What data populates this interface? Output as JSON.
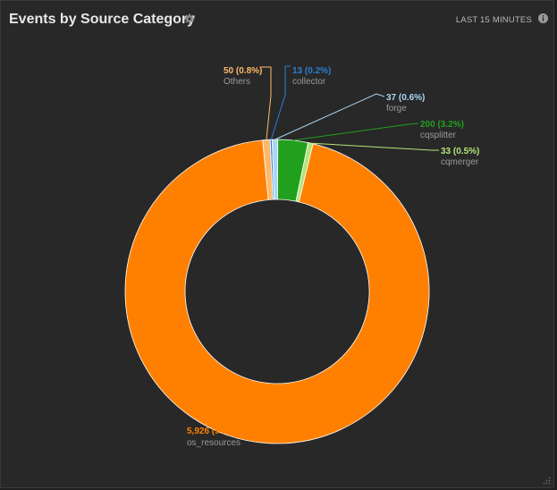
{
  "panel": {
    "title": "Events by Source Category",
    "time_range": "LAST 15 MINUTES",
    "settings_icon": "gear-icon",
    "info_icon": "info-icon"
  },
  "chart_data": {
    "type": "pie",
    "donut": true,
    "slices": [
      {
        "name": "os_resources",
        "value": 5926,
        "label": "5,926 (94.7%)",
        "color": "#ff8000",
        "label_color": "#ff8000"
      },
      {
        "name": "Others",
        "value": 50,
        "label": "50 (0.8%)",
        "color": "#ffb86b",
        "label_color": "#ffb86b"
      },
      {
        "name": "collector",
        "value": 13,
        "label": "13 (0.2%)",
        "color": "#2b7fd6",
        "label_color": "#2b7fd6"
      },
      {
        "name": "forge",
        "value": 37,
        "label": "37 (0.6%)",
        "color": "#a9d6f5",
        "label_color": "#a9d6f5"
      },
      {
        "name": "cqsplitter",
        "value": 200,
        "label": "200 (3.2%)",
        "color": "#21a01e",
        "label_color": "#21a01e"
      },
      {
        "name": "cqmerger",
        "value": 33,
        "label": "33 (0.5%)",
        "color": "#b3e57a",
        "label_color": "#b3e57a"
      }
    ]
  }
}
